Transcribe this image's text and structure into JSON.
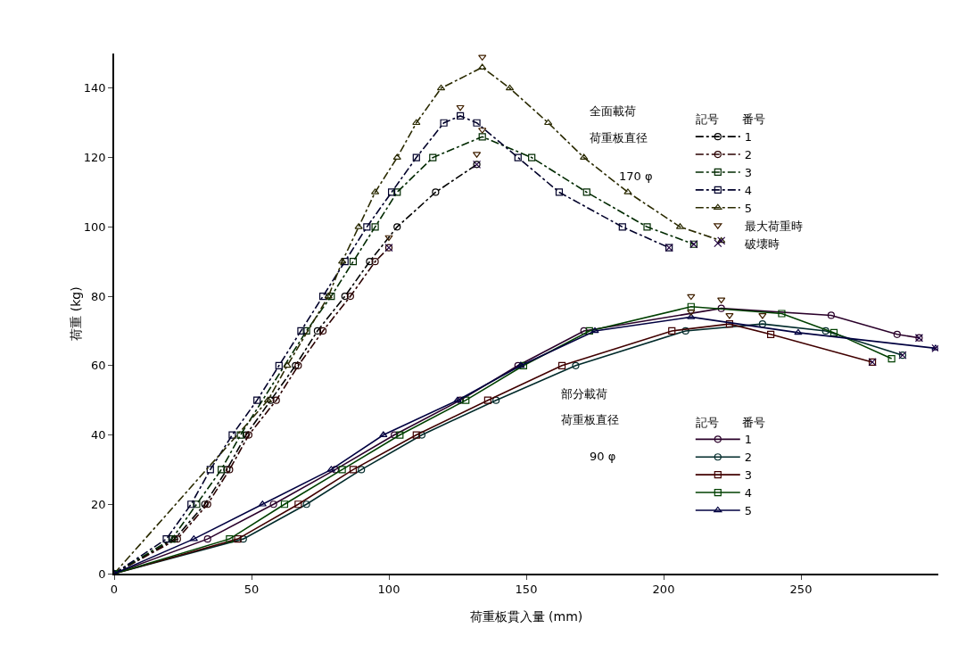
{
  "chart_data": {
    "type": "line",
    "xlabel": "荷重板貫入量 (mm)",
    "ylabel": "荷重 (kg)",
    "legend_title": "記号　　番号",
    "xlim": [
      0,
      300
    ],
    "xticks": [
      0,
      50,
      100,
      150,
      200,
      250
    ],
    "ylim": [
      0,
      150
    ],
    "yticks": [
      0,
      20,
      40,
      60,
      80,
      100,
      120,
      140
    ],
    "grid": false,
    "legend": "right",
    "annotations": [
      "全面載荷",
      "荷重板直径",
      "170 φ",
      "部分載荷",
      "荷重板直径",
      "90 φ"
    ],
    "series": [
      {
        "name": "1",
        "color": "#000000",
        "line_style": "dashdot",
        "marker": "circle",
        "x": [
          0,
          22,
          33,
          41,
          48,
          57,
          66,
          74,
          84,
          93,
          103,
          117,
          132
        ],
        "values": [
          0,
          10,
          20,
          30,
          40,
          50,
          60,
          70,
          80,
          90,
          100,
          110,
          118
        ]
      },
      {
        "name": "2",
        "color": "#2a0000",
        "line_style": "dashdot",
        "marker": "circle",
        "x": [
          0,
          23,
          34,
          42,
          49,
          59,
          67,
          76,
          86,
          95,
          100
        ],
        "values": [
          0,
          10,
          20,
          30,
          40,
          50,
          60,
          70,
          80,
          90,
          94
        ]
      },
      {
        "name": "3",
        "color": "#002a00",
        "line_style": "dashdot",
        "marker": "square",
        "x": [
          0,
          21,
          30,
          39,
          46,
          70,
          79,
          87,
          95,
          103,
          116,
          134,
          152,
          172,
          194,
          211
        ],
        "values": [
          0,
          10,
          20,
          30,
          40,
          70,
          80,
          90,
          100,
          110,
          120,
          126,
          120,
          110,
          100,
          95
        ]
      },
      {
        "name": "4",
        "color": "#00002a",
        "line_style": "dashdot",
        "marker": "square",
        "x": [
          0,
          19,
          28,
          35,
          43,
          52,
          60,
          68,
          76,
          84,
          92,
          101,
          110,
          120,
          126,
          132,
          147,
          162,
          185,
          202
        ],
        "values": [
          0,
          10,
          20,
          30,
          40,
          50,
          60,
          70,
          80,
          90,
          100,
          110,
          120,
          130,
          132,
          130,
          120,
          110,
          100,
          94
        ]
      },
      {
        "name": "5",
        "color": "#2a2a00",
        "line_style": "dashdot",
        "marker": "triangle",
        "x": [
          0,
          56,
          63,
          78,
          83,
          89,
          95,
          103,
          110,
          119,
          134,
          144,
          158,
          171,
          187,
          206,
          221
        ],
        "values": [
          0,
          50,
          60,
          80,
          90,
          100,
          110,
          120,
          130,
          140,
          146,
          140,
          130,
          120,
          110,
          100,
          96
        ]
      },
      {
        "name": "1",
        "color": "#2a002a",
        "line_style": "solid",
        "marker": "circle",
        "x": [
          0,
          34,
          58,
          80.5,
          102,
          126,
          147,
          171,
          221,
          261,
          285,
          293
        ],
        "values": [
          0,
          10,
          20,
          30,
          40,
          50,
          60,
          70,
          76.5,
          74.5,
          69,
          68
        ]
      },
      {
        "name": "2",
        "color": "#002a2a",
        "line_style": "solid",
        "marker": "circle",
        "x": [
          0,
          47,
          70,
          90,
          112,
          139,
          168,
          208,
          236,
          259,
          287
        ],
        "values": [
          0,
          10,
          20,
          30,
          40,
          50,
          60,
          70,
          72,
          70,
          63
        ]
      },
      {
        "name": "3",
        "color": "#400000",
        "line_style": "solid",
        "marker": "square",
        "x": [
          0,
          45,
          67,
          87,
          110,
          136,
          163,
          203,
          224,
          239,
          276
        ],
        "values": [
          0,
          10,
          20,
          30,
          40,
          50,
          60,
          70,
          72,
          69,
          61
        ]
      },
      {
        "name": "4",
        "color": "#004000",
        "line_style": "solid",
        "marker": "square",
        "x": [
          0,
          42,
          62,
          83,
          104,
          128,
          149,
          173,
          210,
          243,
          262,
          283
        ],
        "values": [
          0,
          10,
          20,
          30,
          40,
          50,
          60,
          70,
          77,
          75,
          69.5,
          62
        ]
      },
      {
        "name": "5",
        "color": "#000040",
        "line_style": "solid",
        "marker": "triangle",
        "x": [
          0,
          29,
          54,
          79,
          98,
          125,
          148,
          175,
          210,
          249,
          299
        ],
        "values": [
          0,
          10,
          20,
          30,
          40,
          50,
          60,
          70,
          74,
          69.5,
          65
        ]
      },
      {
        "name": "最大荷重時",
        "type": "scatter",
        "color": "#402000",
        "marker": "triangle",
        "x": [
          132,
          100,
          134,
          126,
          134,
          221,
          236,
          224,
          210,
          210
        ],
        "values": [
          121,
          97,
          128,
          134.5,
          149,
          79,
          74.5,
          74.5,
          80,
          75.5
        ]
      },
      {
        "name": "破壊時",
        "type": "scatter",
        "color": "#200040",
        "marker": "cross",
        "x": [
          132,
          100,
          211,
          202,
          221,
          293,
          287,
          276,
          299
        ],
        "values": [
          118,
          94,
          95,
          94,
          96,
          68,
          63,
          61,
          65
        ]
      }
    ]
  }
}
